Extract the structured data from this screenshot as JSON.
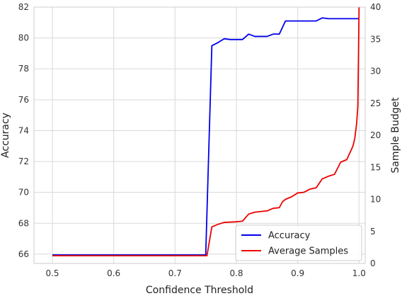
{
  "chart_data": {
    "type": "line",
    "xlabel": "Confidence Threshold",
    "ylabel_left": "Accuracy",
    "ylabel_right": "Sample Budget",
    "xlim": [
      0.47,
      1.01
    ],
    "ylim_left": [
      65.4,
      82
    ],
    "ylim_right": [
      0,
      40
    ],
    "x_ticks": [
      "0.5",
      "0.6",
      "0.7",
      "0.8",
      "0.9",
      "1.0"
    ],
    "y_left_ticks": [
      "66",
      "68",
      "70",
      "72",
      "74",
      "76",
      "78",
      "80",
      "82"
    ],
    "y_right_ticks": [
      "0",
      "5",
      "10",
      "15",
      "20",
      "25",
      "30",
      "35",
      "40"
    ],
    "grid": true,
    "legend": {
      "placement": "bottom-right"
    },
    "series": [
      {
        "name": "Accuracy",
        "axis": "left",
        "color": "#0000ee",
        "points": [
          [
            0.5,
            65.95
          ],
          [
            0.75,
            65.95
          ],
          [
            0.76,
            79.5
          ],
          [
            0.77,
            79.7
          ],
          [
            0.78,
            79.95
          ],
          [
            0.79,
            79.9
          ],
          [
            0.81,
            79.9
          ],
          [
            0.82,
            80.25
          ],
          [
            0.83,
            80.1
          ],
          [
            0.85,
            80.1
          ],
          [
            0.86,
            80.25
          ],
          [
            0.87,
            80.25
          ],
          [
            0.88,
            81.1
          ],
          [
            0.9,
            81.1
          ],
          [
            0.93,
            81.1
          ],
          [
            0.94,
            81.3
          ],
          [
            0.95,
            81.25
          ],
          [
            1.0,
            81.25
          ]
        ]
      },
      {
        "name": "Average Samples",
        "axis": "right",
        "color": "#ee0000",
        "points": [
          [
            0.5,
            1.2
          ],
          [
            0.752,
            1.2
          ],
          [
            0.76,
            5.7
          ],
          [
            0.77,
            6.1
          ],
          [
            0.78,
            6.4
          ],
          [
            0.8,
            6.5
          ],
          [
            0.81,
            6.6
          ],
          [
            0.82,
            7.7
          ],
          [
            0.83,
            8.0
          ],
          [
            0.85,
            8.2
          ],
          [
            0.86,
            8.6
          ],
          [
            0.87,
            8.7
          ],
          [
            0.875,
            9.6
          ],
          [
            0.88,
            10.0
          ],
          [
            0.89,
            10.4
          ],
          [
            0.9,
            11.0
          ],
          [
            0.91,
            11.1
          ],
          [
            0.92,
            11.6
          ],
          [
            0.93,
            11.8
          ],
          [
            0.94,
            13.2
          ],
          [
            0.95,
            13.6
          ],
          [
            0.96,
            13.9
          ],
          [
            0.97,
            15.8
          ],
          [
            0.98,
            16.2
          ],
          [
            0.99,
            18.3
          ],
          [
            0.993,
            19.5
          ],
          [
            0.996,
            21.8
          ],
          [
            0.998,
            24.5
          ],
          [
            0.999,
            32.0
          ],
          [
            1.0,
            40.0
          ]
        ]
      }
    ]
  }
}
